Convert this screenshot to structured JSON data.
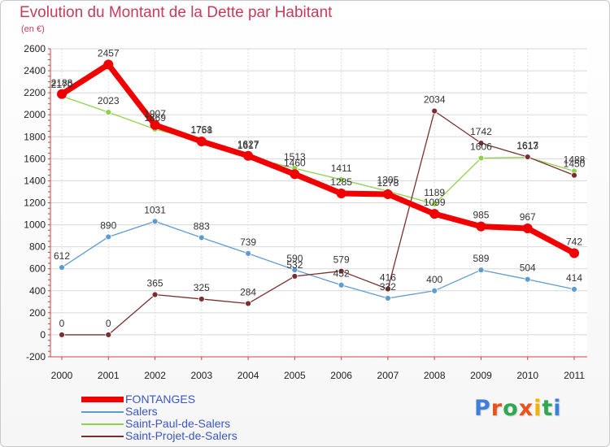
{
  "header": {
    "title": "Evolution du Montant de la Dette par Habitant",
    "subtitle": "(en €)"
  },
  "logo": {
    "letters": [
      "P",
      "r",
      "o",
      "x",
      "i",
      "t",
      "i"
    ],
    "colors": [
      "#3f7fd8",
      "#e8531e",
      "#2fa84f",
      "#e8531e",
      "#f0b400",
      "#2fa84f",
      "#3f7fd8"
    ]
  },
  "chart_data": {
    "type": "line",
    "title": "Evolution du Montant de la Dette par Habitant",
    "subtitle": "(en €)",
    "xlabel": "",
    "ylabel": "",
    "x": [
      "2000",
      "2001",
      "2002",
      "2003",
      "2004",
      "2005",
      "2006",
      "2007",
      "2008",
      "2009",
      "2010",
      "2011"
    ],
    "ylim": [
      -200,
      2600
    ],
    "yticks": [
      -200,
      0,
      200,
      400,
      600,
      800,
      1000,
      1200,
      1400,
      1600,
      1800,
      2000,
      2200,
      2400,
      2600
    ],
    "grid": true,
    "legend_position": "bottom-left",
    "series": [
      {
        "name": "FONTANGES",
        "color": "#f00000",
        "values": [
          2188,
          2457,
          1907,
          1758,
          1627,
          1460,
          1285,
          1278,
          1099,
          985,
          967,
          742
        ],
        "labels": [
          "2188",
          "2457",
          "1907",
          "1758",
          "1627",
          "1460",
          "1285",
          "1278",
          "1099",
          "985",
          "967",
          "742"
        ]
      },
      {
        "name": "Salers",
        "color": "#5f9bd0",
        "values": [
          612,
          890,
          1031,
          883,
          739,
          590,
          452,
          332,
          400,
          589,
          504,
          414
        ],
        "labels": [
          "612",
          "890",
          "1031",
          "883",
          "739",
          "590",
          "452",
          "332",
          "400",
          "589",
          "504",
          "414"
        ]
      },
      {
        "name": "Saint-Paul-de-Salers",
        "color": "#8ed24a",
        "values": [
          2170,
          2023,
          1869,
          1761,
          1617,
          1513,
          1411,
          1305,
          1189,
          1606,
          1613,
          1488
        ],
        "labels": [
          "2170",
          "2023",
          "1869",
          "1761",
          "1617",
          "1513",
          "1411",
          "1305",
          "1189",
          "1606",
          "1613",
          "1488"
        ]
      },
      {
        "name": "Saint-Projet-de-Salers",
        "color": "#7a2e2e",
        "values": [
          0,
          0,
          365,
          325,
          284,
          532,
          579,
          416,
          2034,
          1742,
          1617,
          1450
        ],
        "labels": [
          "0",
          "0",
          "365",
          "325",
          "284",
          "532",
          "579",
          "416",
          "2034",
          "1742",
          "1617",
          "1450"
        ]
      }
    ]
  }
}
